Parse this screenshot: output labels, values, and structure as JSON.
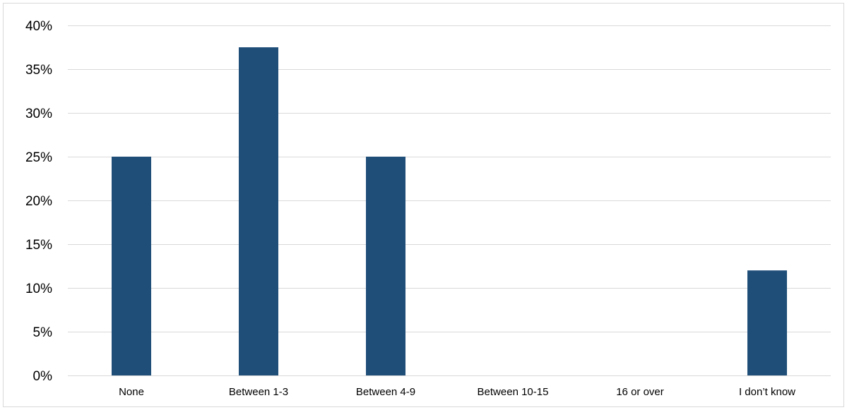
{
  "chart_data": {
    "type": "bar",
    "categories": [
      "None",
      "Between 1-3",
      "Between 4-9",
      "Between 10-15",
      "16 or over",
      "I don’t know"
    ],
    "values": [
      25,
      37.5,
      25,
      0,
      0,
      12
    ],
    "ylim": [
      0,
      40
    ],
    "yticks": [
      0,
      5,
      10,
      15,
      20,
      25,
      30,
      35,
      40
    ],
    "ytick_labels": [
      "0%",
      "5%",
      "10%",
      "15%",
      "20%",
      "25%",
      "30%",
      "35%",
      "40%"
    ],
    "title": "",
    "xlabel": "",
    "ylabel": "",
    "grid": true,
    "legend": "none",
    "bar_color": "#1f4e79",
    "grid_color": "#d9d9d9"
  }
}
